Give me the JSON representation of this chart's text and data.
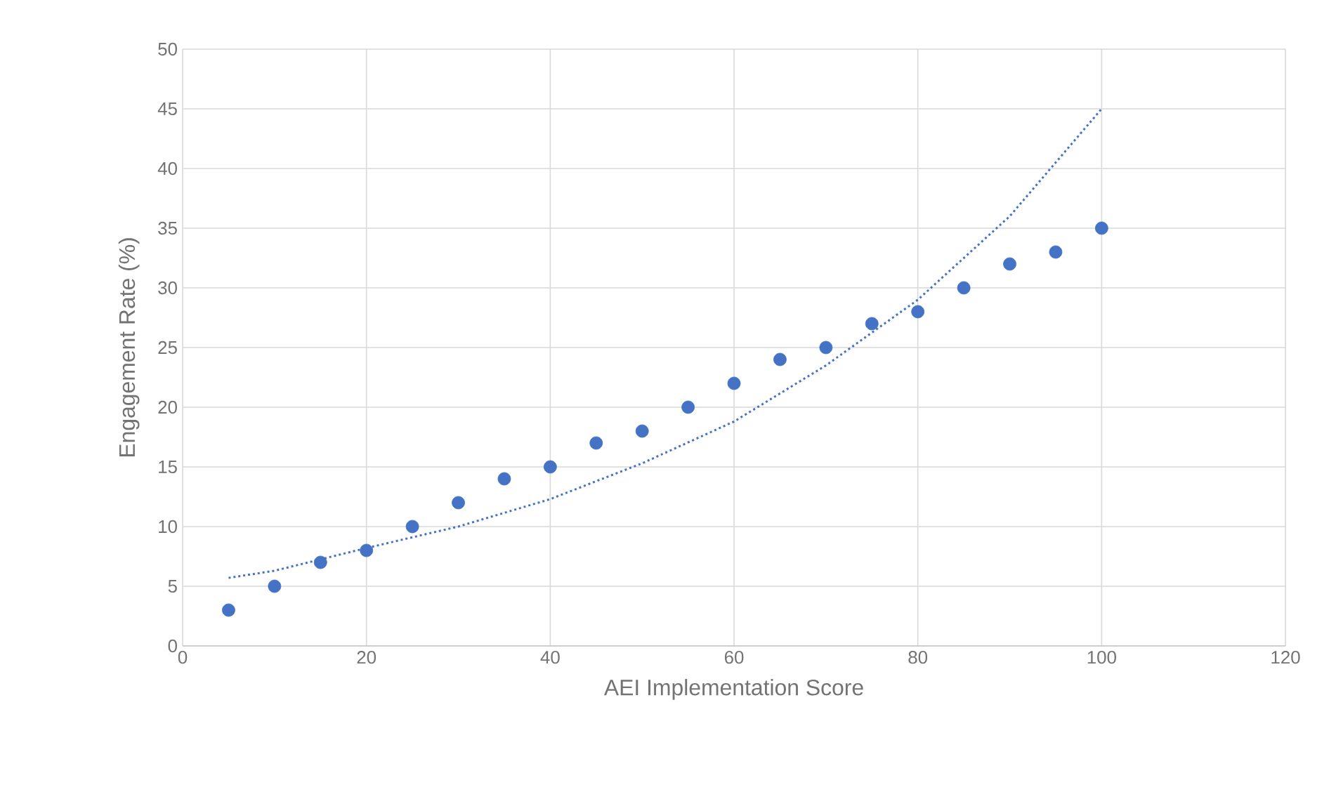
{
  "chart_data": {
    "type": "scatter",
    "xlabel": "AEI Implementation Score",
    "ylabel": "Engagement Rate (%)",
    "xlim": [
      0,
      120
    ],
    "xticks": [
      0,
      20,
      40,
      60,
      80,
      100,
      120
    ],
    "ylim": [
      0,
      50
    ],
    "yticks": [
      0,
      5,
      10,
      15,
      20,
      25,
      30,
      35,
      40,
      45,
      50
    ],
    "grid": true,
    "series": [
      {
        "type": "scatter",
        "marker": "circle",
        "color": "#4472c4",
        "x": [
          5,
          10,
          15,
          20,
          25,
          30,
          35,
          40,
          45,
          50,
          55,
          60,
          65,
          70,
          75,
          80,
          85,
          90,
          95,
          100
        ],
        "values": [
          3,
          5,
          7,
          8,
          10,
          12,
          14,
          15,
          17,
          18,
          20,
          22,
          24,
          25,
          27,
          28,
          30,
          32,
          33,
          35
        ]
      },
      {
        "type": "line",
        "marker": "none",
        "line_style": "dotted",
        "color": "#4472c4",
        "x": [
          5,
          10,
          20,
          30,
          40,
          50,
          60,
          70,
          80,
          90,
          100
        ],
        "values": [
          5.7,
          6.3,
          8.2,
          10,
          12.3,
          15.3,
          18.8,
          23.5,
          29,
          36,
          45
        ]
      }
    ]
  }
}
